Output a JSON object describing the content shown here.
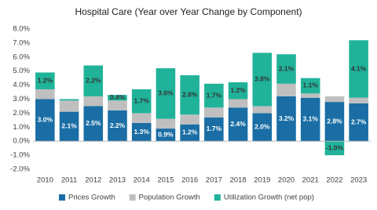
{
  "chart_data": {
    "type": "stacked_bar",
    "title": "Hospital Care (Year over Year Change by Component)",
    "categories": [
      "2010",
      "2011",
      "2012",
      "2013",
      "2014",
      "2015",
      "2016",
      "2017",
      "2018",
      "2019",
      "2020",
      "2021",
      "2022",
      "2023"
    ],
    "series": [
      {
        "name": "Prices Growth",
        "color": "#1a6ea5",
        "label_color": "#ffffff",
        "values": [
          3.0,
          2.1,
          2.5,
          2.2,
          1.3,
          0.9,
          1.2,
          1.7,
          2.4,
          2.0,
          3.2,
          3.1,
          2.8,
          2.7
        ],
        "value_labels": [
          "3.0%",
          "2.1%",
          "2.5%",
          "2.2%",
          "1.3%",
          "0.9%",
          "1.2%",
          "1.7%",
          "2.4%",
          "2.0%",
          "3.2%",
          "3.1%",
          "2.8%",
          "2.7%"
        ]
      },
      {
        "name": "Population Growth",
        "color": "#bfbfbf",
        "values": [
          0.7,
          0.8,
          0.7,
          0.7,
          0.7,
          0.7,
          0.7,
          0.7,
          0.6,
          0.5,
          0.9,
          0.3,
          0.4,
          0.4
        ]
      },
      {
        "name": "Utilization Growth (net pop)",
        "color": "#20b39a",
        "label_color": "#333333",
        "values": [
          1.2,
          0.1,
          2.2,
          0.4,
          1.7,
          3.6,
          2.8,
          1.7,
          1.2,
          3.8,
          2.1,
          1.1,
          -1.0,
          4.1
        ],
        "value_labels": [
          "1.2%",
          null,
          "2.2%",
          "0.4%",
          "1.7%",
          "3.6%",
          "2.8%",
          "1.7%",
          "1.2%",
          "3.8%",
          "2.1%",
          "1.1%",
          "-1.0%",
          "4.1%"
        ]
      }
    ],
    "ylim": [
      -2,
      8
    ],
    "yticks": [
      {
        "value": -2,
        "label": "-2.0%"
      },
      {
        "value": -1,
        "label": "-1.0%"
      },
      {
        "value": 0,
        "label": "0.0%"
      },
      {
        "value": 1,
        "label": "1.0%"
      },
      {
        "value": 2,
        "label": "2.0%"
      },
      {
        "value": 3,
        "label": "3.0%"
      },
      {
        "value": 4,
        "label": "4.0%"
      },
      {
        "value": 5,
        "label": "5.0%"
      },
      {
        "value": 6,
        "label": "6.0%"
      },
      {
        "value": 7,
        "label": "7.0%"
      },
      {
        "value": 8,
        "label": "8.0%"
      }
    ],
    "grid": false,
    "legend": "bottom"
  }
}
